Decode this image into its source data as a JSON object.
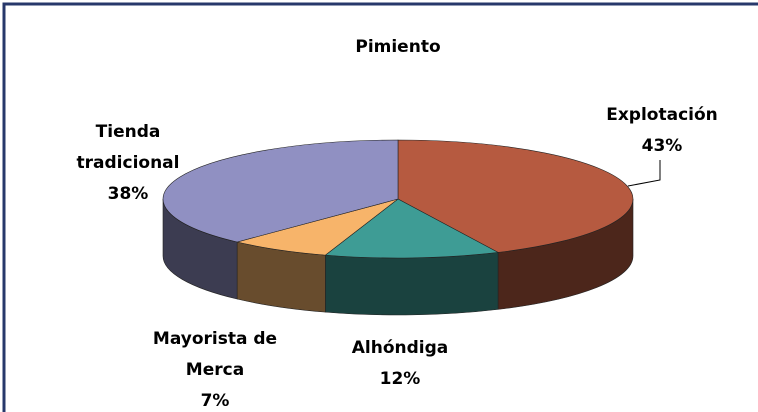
{
  "chart_data": {
    "type": "pie3d",
    "title": "Pimiento",
    "categories": [
      "Explotación",
      "Alhóndiga",
      "Mayorista de Merca",
      "Tienda tradicional"
    ],
    "values": [
      43,
      12,
      7,
      38
    ],
    "value_labels": [
      "43%",
      "12%",
      "7%",
      "38%"
    ],
    "colors": [
      "#b65a40",
      "#3e9c95",
      "#f7b46a",
      "#9090c2"
    ]
  }
}
